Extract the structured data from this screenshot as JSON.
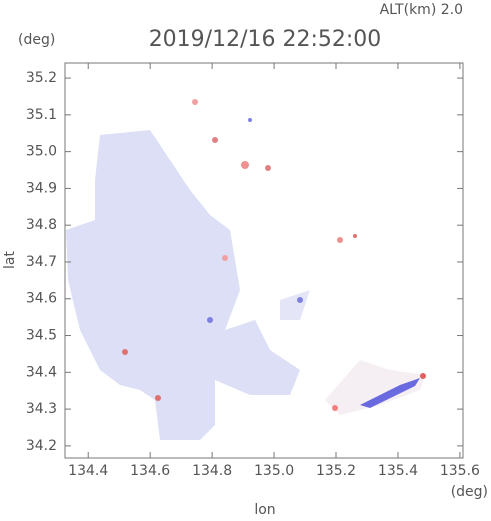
{
  "chart_data": {
    "type": "map",
    "title": "2019/12/16 22:52:00",
    "subtitle": "ALT(km) 2.0",
    "x_label": "lon",
    "y_label": "lat",
    "x_unit": "(deg)",
    "y_unit": "(deg)",
    "xlim": [
      134.325,
      135.61
    ],
    "ylim": [
      34.167,
      35.241
    ],
    "xticks": [
      134.4,
      134.6,
      134.8,
      {
        "value": 135.0,
        "label": "135.0"
      },
      135.2,
      135.4,
      135.6
    ],
    "yticks": [
      34.2,
      34.3,
      34.4,
      34.5,
      34.6,
      34.7,
      34.8,
      34.9,
      {
        "value": 35.0,
        "label": "35.0"
      },
      35.1,
      35.2
    ]
  }
}
